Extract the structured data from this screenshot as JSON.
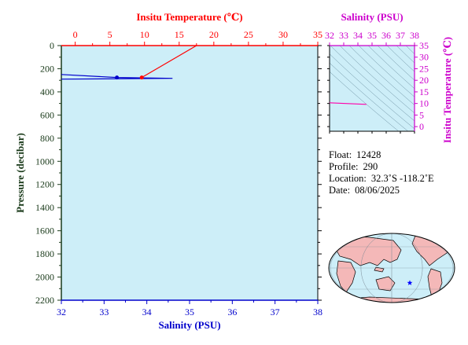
{
  "chart_data": [
    {
      "type": "line",
      "name": "profile",
      "bottom_axis": {
        "label": "Salinity (PSU)",
        "range": [
          32,
          38
        ],
        "ticks": [
          32,
          33,
          34,
          35,
          36,
          37,
          38
        ],
        "color": "#0000cc"
      },
      "top_axis": {
        "label": "Insitu Temperature (℃)",
        "range": [
          -2,
          35
        ],
        "ticks": [
          0,
          5,
          10,
          15,
          20,
          25,
          30,
          35
        ],
        "color": "#ff0000"
      },
      "left_axis": {
        "label": "Pressure (decibar)",
        "range": [
          0,
          2200
        ],
        "inverted": true,
        "ticks": [
          0,
          200,
          400,
          600,
          800,
          1000,
          1200,
          1400,
          1600,
          1800,
          2000,
          2200
        ],
        "color": "#1a3a1a"
      },
      "series": [
        {
          "quantity": "salinity",
          "color": "#0000cc",
          "points": [
            [
              32.0,
              250
            ],
            [
              33.3,
              276
            ],
            [
              34.6,
              283
            ],
            [
              32.0,
              290
            ]
          ]
        },
        {
          "quantity": "temperature",
          "color": "#ff0000",
          "points": [
            [
              17.5,
              0
            ],
            [
              9.6,
              276
            ]
          ]
        }
      ],
      "markers": [
        {
          "quantity": "salinity",
          "x": 33.3,
          "y": 276,
          "color": "#0000cc"
        },
        {
          "quantity": "temperature",
          "x": 9.6,
          "y": 276,
          "color": "#ff0000"
        }
      ],
      "background": "#cdeef8"
    },
    {
      "type": "scatter",
      "name": "ts-diagram",
      "top_axis": {
        "label": "Salinity (PSU)",
        "range": [
          32,
          38
        ],
        "ticks": [
          32,
          33,
          34,
          35,
          36,
          37,
          38
        ],
        "color": "#cc00cc"
      },
      "right_axis": {
        "label": "Insitu Temperature (℃)",
        "range": [
          -2,
          35
        ],
        "ticks": [
          0,
          5,
          10,
          15,
          20,
          25,
          30,
          35
        ],
        "color": "#cc00cc"
      },
      "series": [
        {
          "color": "#ff00aa",
          "points": [
            [
              32.0,
              10.3
            ],
            [
              34.6,
              9.6
            ]
          ]
        }
      ],
      "background": "#cdeef8"
    }
  ],
  "info": {
    "float_label": "Float:",
    "float_value": "12428",
    "profile_label": "Profile:",
    "profile_value": "290",
    "location_label": "Location:",
    "location_value": "32.3˚S  -118.2˚E",
    "date_label": "Date:",
    "date_value": "08/06/2025"
  },
  "map": {
    "marker_icon": "star-icon",
    "marker_color": "#0000ff",
    "ocean_color": "#cdeef8",
    "land_color": "#f4b8b8"
  }
}
